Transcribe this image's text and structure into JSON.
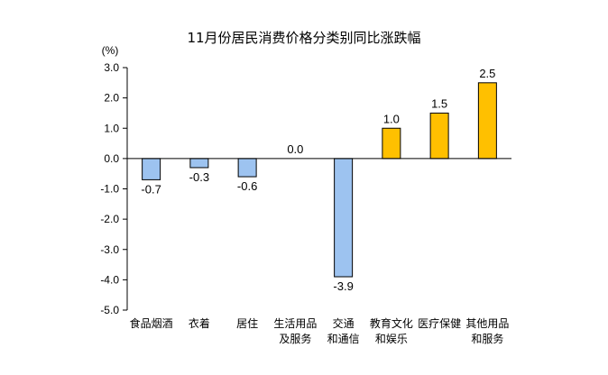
{
  "chart_data": {
    "type": "bar",
    "title": "11月份居民消费价格分类别同比涨跌幅",
    "unit": "(%)",
    "categories": [
      [
        "食品烟酒"
      ],
      [
        "衣着"
      ],
      [
        "居住"
      ],
      [
        "生活用品",
        "及服务"
      ],
      [
        "交通",
        "和通信"
      ],
      [
        "教育文化",
        "和娱乐"
      ],
      [
        "医疗保健"
      ],
      [
        "其他用品",
        "和服务"
      ]
    ],
    "values": [
      -0.7,
      -0.3,
      -0.6,
      0.0,
      -3.9,
      1.0,
      1.5,
      2.5
    ],
    "value_labels": [
      "-0.7",
      "-0.3",
      "-0.6",
      "0.0",
      "-3.9",
      "1.0",
      "1.5",
      "2.5"
    ],
    "ylim": [
      -5.0,
      3.0
    ],
    "yticks": [
      "3.0",
      "2.0",
      "1.0",
      "0.0",
      "-1.0",
      "-2.0",
      "-3.0",
      "-4.0",
      "-5.0"
    ],
    "xlabel": "",
    "ylabel": "",
    "grid": false,
    "colors": {
      "negative_fill": "#9DC3F0",
      "positive_fill": "#FFC000",
      "bar_outline": "#000000",
      "axis": "#000000"
    }
  }
}
